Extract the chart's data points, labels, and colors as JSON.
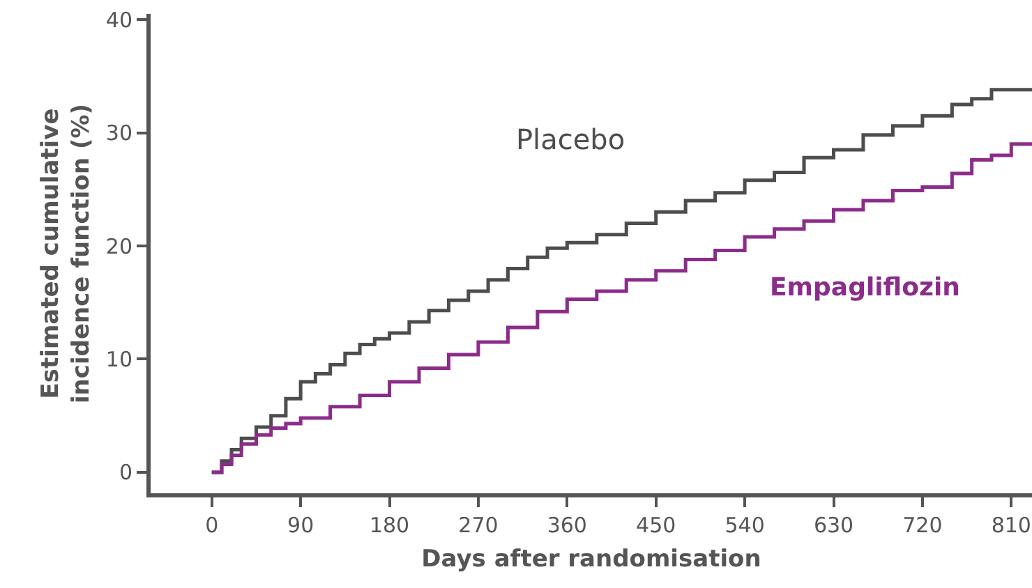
{
  "chart_data": {
    "type": "step",
    "xlabel": "Days after randomisation",
    "ylabel": "Estimated cumulative incidence function (%)",
    "xlim": [
      -62,
      831
    ],
    "xticks": [
      0,
      90,
      180,
      270,
      360,
      450,
      540,
      630,
      720,
      810
    ],
    "ylim": [
      -1.85,
      40.5
    ],
    "yticks": [
      0,
      10,
      20,
      30,
      40
    ],
    "grid": false,
    "legend": false,
    "marker": "none",
    "line_style": "solid",
    "series": [
      {
        "name": "Placebo",
        "color": "#4d4d4d",
        "x": [
          0,
          10,
          20,
          30,
          45,
          60,
          75,
          90,
          105,
          120,
          135,
          150,
          165,
          180,
          200,
          220,
          240,
          260,
          280,
          300,
          320,
          340,
          360,
          390,
          420,
          450,
          480,
          510,
          540,
          570,
          600,
          630,
          660,
          690,
          720,
          750,
          770,
          790,
          810,
          831
        ],
        "values": [
          0,
          1,
          2,
          3,
          4,
          5,
          6.5,
          8,
          8.7,
          9.5,
          10.5,
          11.3,
          11.8,
          12.3,
          13.3,
          14.3,
          15.2,
          16,
          17,
          18,
          19,
          19.8,
          20.3,
          21,
          22,
          23,
          24,
          24.7,
          25.8,
          26.5,
          27.8,
          28.5,
          29.8,
          30.6,
          31.5,
          32.5,
          33,
          33.8,
          33.8,
          33.8
        ]
      },
      {
        "name": "Empagliflozin",
        "color": "#8b2c8a",
        "x": [
          0,
          10,
          20,
          30,
          45,
          60,
          75,
          90,
          120,
          150,
          180,
          210,
          240,
          270,
          300,
          330,
          360,
          390,
          420,
          450,
          480,
          510,
          540,
          570,
          600,
          630,
          660,
          690,
          720,
          750,
          770,
          790,
          810,
          831
        ],
        "values": [
          0,
          0.7,
          1.5,
          2.5,
          3.3,
          3.9,
          4.3,
          4.8,
          5.8,
          6.8,
          8,
          9.2,
          10.4,
          11.5,
          12.8,
          14.2,
          15.3,
          16,
          17,
          17.8,
          18.8,
          19.6,
          20.8,
          21.5,
          22.2,
          23.2,
          24,
          24.9,
          25.2,
          26.4,
          27.6,
          28,
          29,
          29
        ]
      }
    ]
  }
}
